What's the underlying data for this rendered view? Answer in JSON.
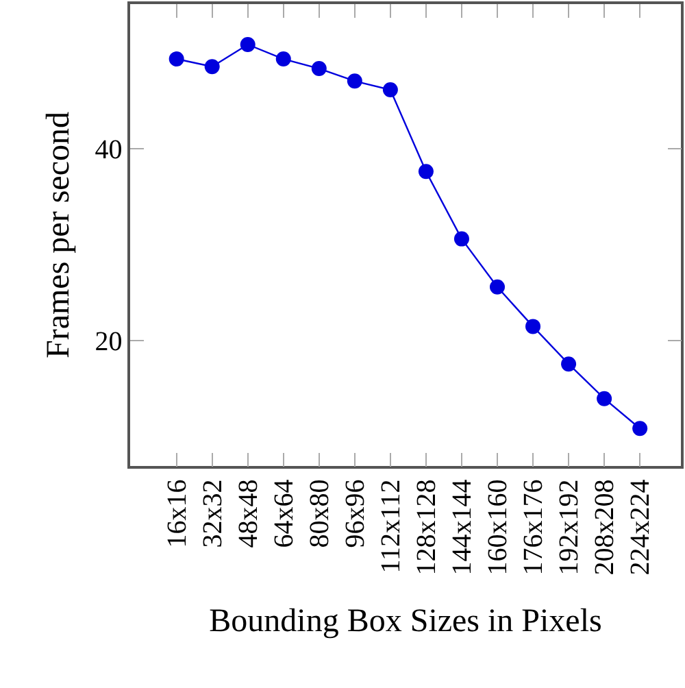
{
  "chart_data": {
    "type": "line",
    "xlabel": "Bounding Box Sizes in Pixels",
    "ylabel": "Frames per second",
    "categories": [
      "16x16",
      "32x32",
      "48x48",
      "64x64",
      "80x80",
      "96x96",
      "112x112",
      "128x128",
      "144x144",
      "160x160",
      "176x176",
      "192x192",
      "208x208",
      "224x224"
    ],
    "series": [
      {
        "color": "#0000dd",
        "values": [
          49.3,
          48.5,
          50.8,
          49.3,
          48.3,
          47.0,
          46.1,
          37.6,
          30.6,
          25.6,
          21.5,
          17.6,
          14.0,
          10.9
        ]
      }
    ],
    "ylim": [
      7,
      55
    ],
    "yticks": [
      20,
      40
    ],
    "marker": "circle",
    "line_style": "solid"
  }
}
